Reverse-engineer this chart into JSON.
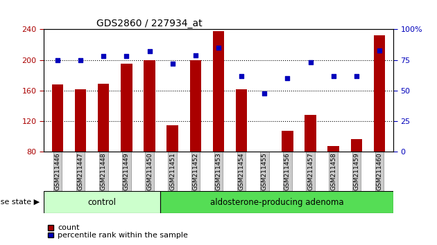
{
  "title": "GDS2860 / 227934_at",
  "categories": [
    "GSM211446",
    "GSM211447",
    "GSM211448",
    "GSM211449",
    "GSM211450",
    "GSM211451",
    "GSM211452",
    "GSM211453",
    "GSM211454",
    "GSM211455",
    "GSM211456",
    "GSM211457",
    "GSM211458",
    "GSM211459",
    "GSM211460"
  ],
  "counts": [
    168,
    162,
    169,
    195,
    200,
    115,
    200,
    238,
    162,
    80,
    108,
    128,
    88,
    97,
    232
  ],
  "percentiles": [
    75,
    75,
    78,
    78,
    82,
    72,
    79,
    85,
    62,
    48,
    60,
    73,
    62,
    62,
    83
  ],
  "ylim_left": [
    80,
    240
  ],
  "ylim_right": [
    0,
    100
  ],
  "yticks_left": [
    80,
    120,
    160,
    200,
    240
  ],
  "yticks_right": [
    0,
    25,
    50,
    75,
    100
  ],
  "grid_lines": [
    120,
    160,
    200
  ],
  "bar_color": "#aa0000",
  "dot_color": "#0000bb",
  "control_count": 5,
  "control_label": "control",
  "adenoma_label": "aldosterone-producing adenoma",
  "control_color": "#ccffcc",
  "adenoma_color": "#55dd55",
  "disease_label": "disease state",
  "legend_count_label": "count",
  "legend_pct_label": "percentile rank within the sample",
  "tick_label_bg": "#cccccc",
  "bar_width": 0.5
}
